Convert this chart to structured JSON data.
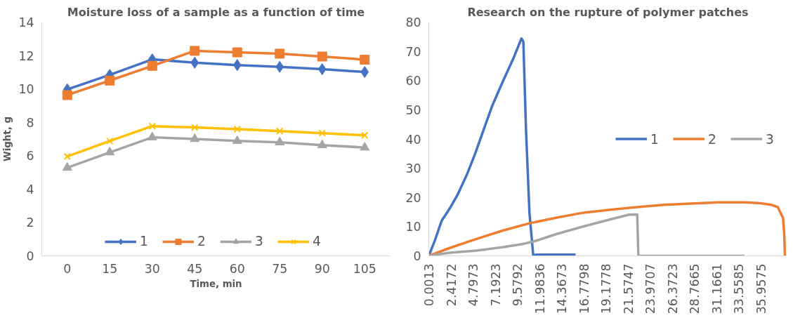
{
  "chart_data": [
    {
      "type": "line",
      "title": "Moisture loss of a sample as a function of time",
      "xlabel": "Time, min",
      "ylabel": "Wight, g",
      "categories": [
        "0",
        "15",
        "30",
        "45",
        "60",
        "75",
        "90",
        "105"
      ],
      "ylim": [
        0,
        14
      ],
      "yticks": [
        0,
        2,
        4,
        6,
        8,
        10,
        12,
        14
      ],
      "grid": false,
      "legend": "bottom",
      "series": [
        {
          "name": "1",
          "color": "#4472c4",
          "marker": "diamond",
          "values": [
            9.97,
            10.84,
            11.77,
            11.57,
            11.43,
            11.32,
            11.18,
            11.01
          ]
        },
        {
          "name": "2",
          "color": "#ed7d31",
          "marker": "square",
          "values": [
            9.63,
            10.5,
            11.38,
            12.28,
            12.19,
            12.11,
            11.94,
            11.75
          ]
        },
        {
          "name": "3",
          "color": "#a5a5a5",
          "marker": "triangle",
          "values": [
            5.28,
            6.2,
            7.1,
            7.0,
            6.88,
            6.8,
            6.63,
            6.49
          ]
        },
        {
          "name": "4",
          "color": "#ffc000",
          "marker": "cross",
          "values": [
            5.95,
            6.88,
            7.77,
            7.69,
            7.59,
            7.47,
            7.35,
            7.22
          ]
        }
      ]
    },
    {
      "type": "line",
      "title": "Research on the rupture of polymer patches",
      "xlim": [
        0,
        38.8
      ],
      "xticks": [
        0.0013,
        2.4172,
        4.7973,
        7.1923,
        9.5792,
        11.9836,
        14.3673,
        16.7798,
        19.1778,
        21.5747,
        23.9707,
        26.3723,
        28.7665,
        31.1661,
        33.5585,
        35.9575
      ],
      "ylim": [
        0,
        80
      ],
      "yticks": [
        0,
        10,
        20,
        30,
        40,
        50,
        60,
        70,
        80
      ],
      "grid": false,
      "legend": "right",
      "series": [
        {
          "name": "1",
          "color": "#4472c4",
          "x": [
            0,
            0.67,
            1.39,
            2.26,
            3.13,
            4.15,
            5.02,
            6.03,
            6.9,
            8.06,
            9.22,
            10.03,
            10.24,
            10.53,
            10.9,
            11.31,
            11.69,
            15.9
          ],
          "values": [
            0,
            5.4,
            12,
            16.2,
            21,
            28,
            35,
            44,
            51.6,
            60,
            68,
            74.4,
            73.3,
            43,
            14.8,
            0.2,
            0.4,
            0.4
          ]
        },
        {
          "name": "2",
          "color": "#ed7d31",
          "x": [
            0,
            2.26,
            5.16,
            8.06,
            10.96,
            13.87,
            16.77,
            19.67,
            22.57,
            25.47,
            28.38,
            31.28,
            34.18,
            35.92,
            37.08,
            37.8,
            38.37,
            38.5,
            38.57
          ],
          "values": [
            0,
            2.7,
            5.8,
            8.7,
            11.2,
            13.1,
            14.8,
            15.8,
            16.7,
            17.5,
            17.9,
            18.3,
            18.3,
            18,
            17.5,
            16.7,
            12.9,
            7.3,
            0
          ]
        },
        {
          "name": "3",
          "color": "#a5a5a5",
          "x": [
            0,
            2.26,
            5.16,
            8.06,
            10.09,
            11.54,
            13.87,
            16.77,
            19.67,
            21.7,
            22.57,
            22.7,
            34.18
          ],
          "values": [
            0,
            1.1,
            1.8,
            3,
            4,
            5.1,
            7.5,
            10.1,
            12.5,
            14.1,
            14.2,
            0,
            0
          ]
        }
      ]
    }
  ]
}
